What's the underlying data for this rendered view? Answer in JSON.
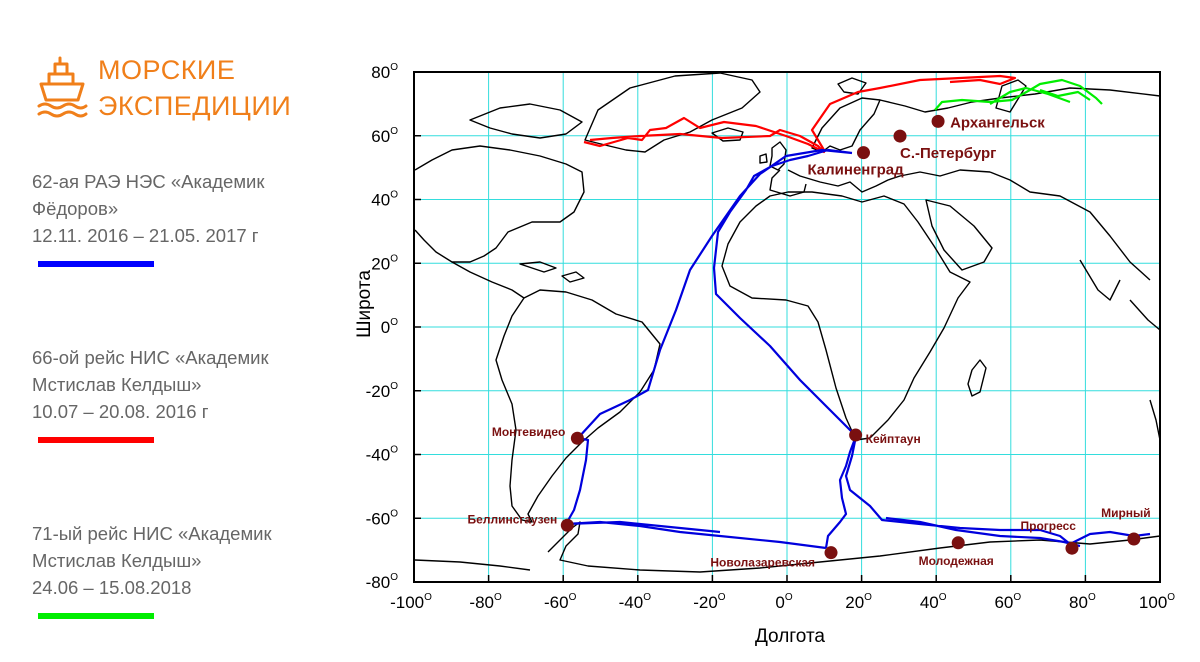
{
  "brand": {
    "title": "МОРСКИЕ\nЭКСПЕДИЦИИ",
    "color": "#f07f1a",
    "icon": "ship-icon"
  },
  "expeditions": [
    {
      "lines": [
        "62-ая РАЭ НЭС «Академик",
        "Фёдоров»",
        "12.11. 2016 – 21.05. 2017 г"
      ],
      "color": "#0000ff"
    },
    {
      "lines": [
        "66-ой рейс НИС «Академик",
        "Мстислав Келдыш»",
        "10.07 – 20.08. 2016 г"
      ],
      "color": "#ff0000"
    },
    {
      "lines": [
        "71-ый рейс НИС «Академик",
        "Мстислав Келдыш»",
        "24.06 – 15.08.2018"
      ],
      "color": "#00ee00"
    }
  ],
  "map": {
    "xlabel": "Долгота",
    "ylabel": "Широта",
    "x_range": [
      -100,
      100
    ],
    "y_range": [
      -80,
      80
    ],
    "x_ticks": [
      "-100",
      "-80",
      "-60",
      "-40",
      "-20",
      "0",
      "20",
      "40",
      "60",
      "80",
      "100"
    ],
    "y_ticks": [
      "80",
      "60",
      "40",
      "20",
      "0",
      "-20",
      "-40",
      "-60",
      "-80"
    ],
    "degree_mark": "O",
    "grid": true,
    "grid_color": "#33dddd",
    "cities": [
      {
        "name": "Архангельск",
        "lon": 40.5,
        "lat": 64.5
      },
      {
        "name": "С.-Петербург",
        "lon": 30.3,
        "lat": 59.9
      },
      {
        "name": "Калиненград",
        "lon": 20.5,
        "lat": 54.7
      },
      {
        "name": "Монтевидео",
        "lon": -56.2,
        "lat": -34.9
      },
      {
        "name": "Кейптаун",
        "lon": 18.4,
        "lat": -33.9
      },
      {
        "name": "Беллинсгаузен",
        "lon": -58.9,
        "lat": -62.2
      },
      {
        "name": "Новолазаревская",
        "lon": 11.8,
        "lat": -70.8
      },
      {
        "name": "Молодежная",
        "lon": 45.9,
        "lat": -67.7
      },
      {
        "name": "Прогресс",
        "lon": 76.4,
        "lat": -69.4
      },
      {
        "name": "Мирный",
        "lon": 93.0,
        "lat": -66.5
      }
    ],
    "marker_color": "#7a1010"
  }
}
